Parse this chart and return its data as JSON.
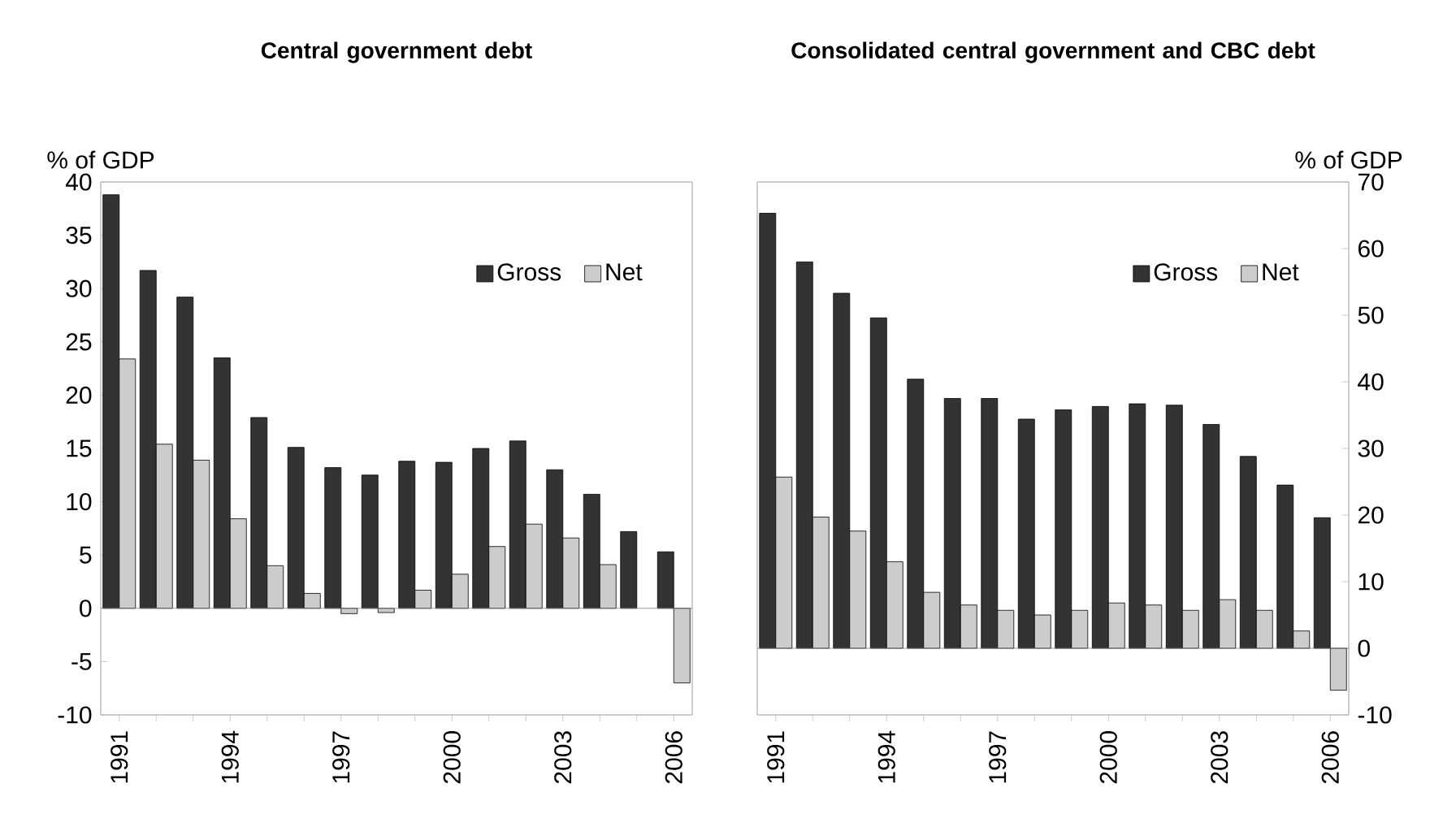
{
  "chart_data": [
    {
      "type": "bar",
      "title": "Central government debt",
      "ylabel": "% of GDP",
      "categories": [
        "1991",
        null,
        null,
        "1994",
        null,
        null,
        "1997",
        null,
        null,
        "2000",
        null,
        null,
        "2003",
        null,
        null,
        "2006"
      ],
      "series": [
        {
          "name": "Gross",
          "color": "#333333",
          "values": [
            38.8,
            31.7,
            29.2,
            23.5,
            17.9,
            15.1,
            13.2,
            12.5,
            13.8,
            13.7,
            15.0,
            15.7,
            13.0,
            10.7,
            7.2,
            5.3
          ]
        },
        {
          "name": "Net",
          "color": "#cccccc",
          "values": [
            23.4,
            15.4,
            13.9,
            8.4,
            4.0,
            1.4,
            -0.5,
            -0.4,
            1.7,
            3.2,
            5.8,
            7.9,
            6.6,
            4.1,
            null,
            -7.0
          ]
        }
      ],
      "ylim": [
        -10,
        40
      ],
      "yticks": [
        -10,
        -5,
        0,
        5,
        10,
        15,
        20,
        25,
        30,
        35,
        40
      ],
      "legend": "top right"
    },
    {
      "type": "bar",
      "title": "Consolidated central government and CBC debt",
      "y2label": "% of GDP",
      "categories": [
        "1991",
        null,
        null,
        "1994",
        null,
        null,
        "1997",
        null,
        null,
        "2000",
        null,
        null,
        "2003",
        null,
        null,
        "2006"
      ],
      "series": [
        {
          "name": "Gross",
          "color": "#333333",
          "axis": "y2",
          "values": [
            65.3,
            58.0,
            53.3,
            49.6,
            40.4,
            37.5,
            37.5,
            34.4,
            35.8,
            36.3,
            36.7,
            36.5,
            33.6,
            28.8,
            24.5,
            19.6
          ]
        },
        {
          "name": "Net",
          "color": "#cccccc",
          "axis": "y2",
          "values": [
            25.7,
            19.7,
            17.6,
            13.0,
            8.4,
            6.5,
            5.7,
            5.0,
            5.7,
            6.8,
            6.5,
            5.7,
            7.3,
            5.7,
            2.6,
            -6.3
          ]
        }
      ],
      "y2lim": [
        -10,
        70
      ],
      "y2ticks": [
        -10,
        0,
        10,
        20,
        30,
        40,
        50,
        60,
        70
      ],
      "legend": "top right"
    }
  ]
}
